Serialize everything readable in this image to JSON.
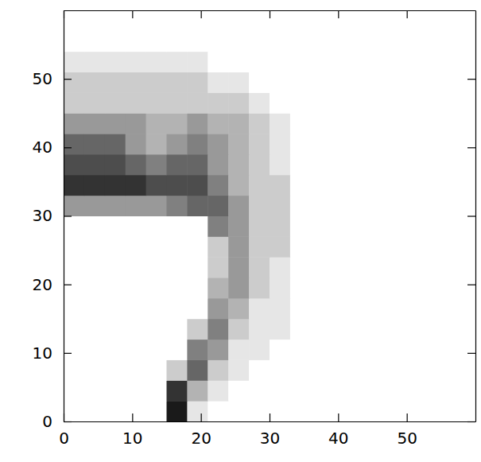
{
  "chart_data": {
    "type": "heatmap",
    "x_bins": [
      0,
      3,
      6,
      9,
      12,
      15,
      18,
      21,
      24,
      27,
      30,
      33,
      36,
      39,
      42,
      45,
      48,
      51,
      54,
      57,
      60
    ],
    "y_bins": [
      0,
      3,
      6,
      9,
      12,
      15,
      18,
      21,
      24,
      27,
      30,
      33,
      36,
      39,
      42,
      45,
      48,
      51,
      54,
      57,
      60
    ],
    "values": [
      [
        0,
        0,
        0,
        0,
        0,
        9,
        1,
        0,
        0,
        0,
        0,
        0,
        0,
        0,
        0,
        0,
        0,
        0,
        0,
        0
      ],
      [
        0,
        0,
        0,
        0,
        0,
        8,
        3,
        1,
        0,
        0,
        0,
        0,
        0,
        0,
        0,
        0,
        0,
        0,
        0,
        0
      ],
      [
        0,
        0,
        0,
        0,
        0,
        2,
        6,
        2,
        1,
        0,
        0,
        0,
        0,
        0,
        0,
        0,
        0,
        0,
        0,
        0
      ],
      [
        0,
        0,
        0,
        0,
        0,
        0,
        5,
        4,
        1,
        1,
        0,
        0,
        0,
        0,
        0,
        0,
        0,
        0,
        0,
        0
      ],
      [
        0,
        0,
        0,
        0,
        0,
        0,
        2,
        5,
        2,
        1,
        1,
        0,
        0,
        0,
        0,
        0,
        0,
        0,
        0,
        0
      ],
      [
        0,
        0,
        0,
        0,
        0,
        0,
        0,
        4,
        3,
        1,
        1,
        0,
        0,
        0,
        0,
        0,
        0,
        0,
        0,
        0
      ],
      [
        0,
        0,
        0,
        0,
        0,
        0,
        0,
        3,
        4,
        2,
        1,
        0,
        0,
        0,
        0,
        0,
        0,
        0,
        0,
        0
      ],
      [
        0,
        0,
        0,
        0,
        0,
        0,
        0,
        2,
        4,
        2,
        1,
        0,
        0,
        0,
        0,
        0,
        0,
        0,
        0,
        0
      ],
      [
        0,
        0,
        0,
        0,
        0,
        0,
        0,
        2,
        4,
        2,
        2,
        0,
        0,
        0,
        0,
        0,
        0,
        0,
        0,
        0
      ],
      [
        0,
        0,
        0,
        0,
        0,
        0,
        0,
        5,
        4,
        2,
        2,
        0,
        0,
        0,
        0,
        0,
        0,
        0,
        0,
        0
      ],
      [
        4,
        4,
        4,
        4,
        4,
        5,
        6,
        6,
        4,
        2,
        2,
        0,
        0,
        0,
        0,
        0,
        0,
        0,
        0,
        0
      ],
      [
        8,
        8,
        8,
        8,
        7,
        7,
        7,
        5,
        3,
        2,
        2,
        0,
        0,
        0,
        0,
        0,
        0,
        0,
        0,
        0
      ],
      [
        7,
        7,
        7,
        6,
        5,
        6,
        6,
        4,
        3,
        2,
        1,
        0,
        0,
        0,
        0,
        0,
        0,
        0,
        0,
        0
      ],
      [
        6,
        6,
        6,
        4,
        3,
        4,
        5,
        4,
        3,
        2,
        1,
        0,
        0,
        0,
        0,
        0,
        0,
        0,
        0,
        0
      ],
      [
        4,
        4,
        4,
        4,
        3,
        3,
        4,
        3,
        3,
        2,
        1,
        0,
        0,
        0,
        0,
        0,
        0,
        0,
        0,
        0
      ],
      [
        2,
        2,
        2,
        2,
        2,
        2,
        2,
        2,
        2,
        1,
        0,
        0,
        0,
        0,
        0,
        0,
        0,
        0,
        0,
        0
      ],
      [
        2,
        2,
        2,
        2,
        2,
        2,
        2,
        1,
        1,
        0,
        0,
        0,
        0,
        0,
        0,
        0,
        0,
        0,
        0,
        0
      ],
      [
        1,
        1,
        1,
        1,
        1,
        1,
        1,
        0,
        0,
        0,
        0,
        0,
        0,
        0,
        0,
        0,
        0,
        0,
        0,
        0
      ],
      [
        0,
        0,
        0,
        0,
        0,
        0,
        0,
        0,
        0,
        0,
        0,
        0,
        0,
        0,
        0,
        0,
        0,
        0,
        0,
        0
      ],
      [
        0,
        0,
        0,
        0,
        0,
        0,
        0,
        0,
        0,
        0,
        0,
        0,
        0,
        0,
        0,
        0,
        0,
        0,
        0,
        0
      ]
    ],
    "zlim": [
      0,
      10
    ],
    "xlim": [
      0,
      60
    ],
    "ylim": [
      0,
      60
    ],
    "xticks": [
      0,
      10,
      20,
      30,
      40,
      50
    ],
    "yticks": [
      0,
      10,
      20,
      30,
      40,
      50
    ]
  }
}
